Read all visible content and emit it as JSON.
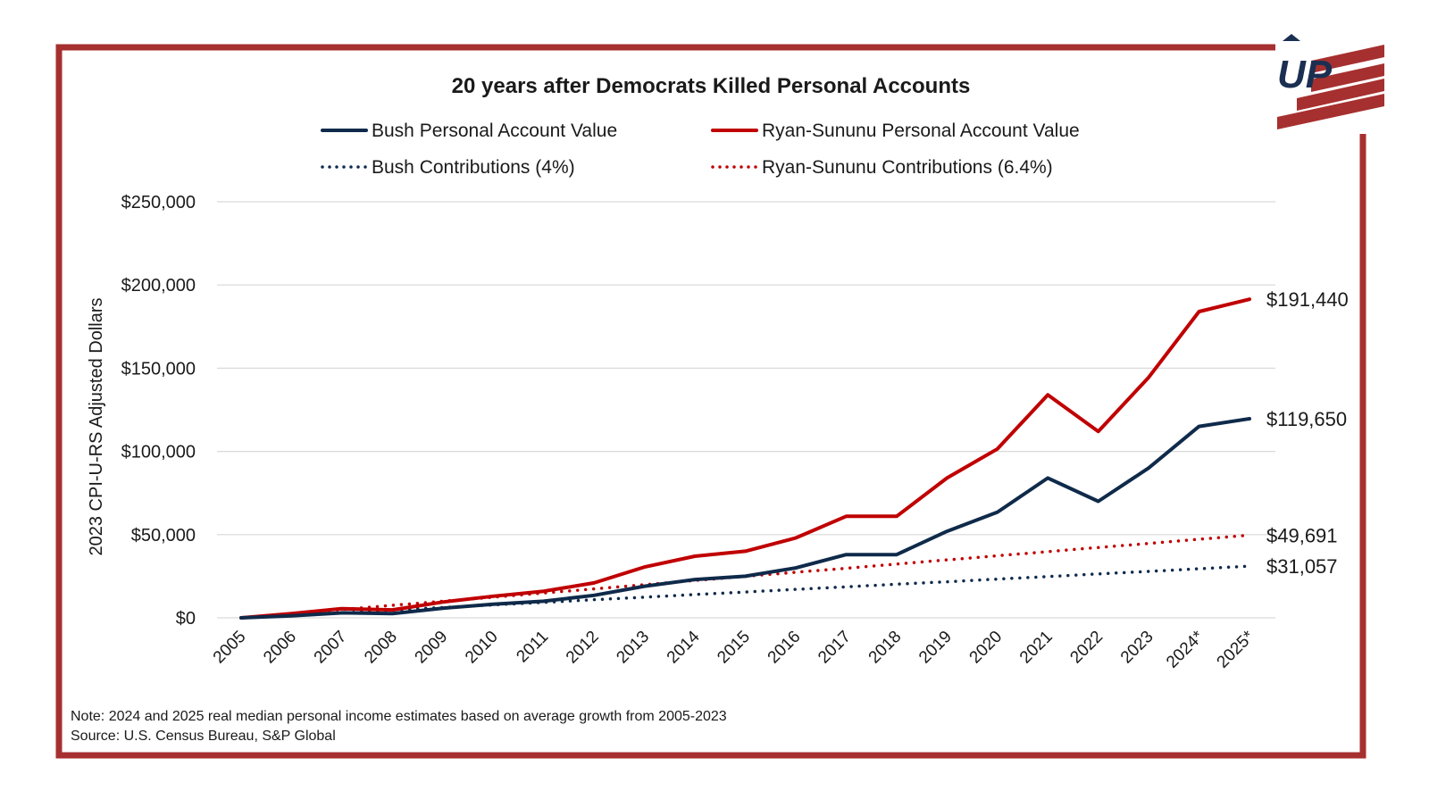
{
  "logo": {
    "text": "UP",
    "stripe_color": "#a6302f",
    "text_color": "#1b2f52"
  },
  "colors": {
    "frame": "#a6302f",
    "navy": "#0f2a4a",
    "red": "#c00000",
    "grid": "#d9d9d9",
    "text": "#1a1a1a"
  },
  "chart_data": {
    "type": "line",
    "title": "20 years after Democrats Killed Personal Accounts",
    "ylabel": "2023 CPI-U-RS Adjusted Dollars",
    "xlabel": "",
    "ylim": [
      0,
      250000
    ],
    "yticks": [
      {
        "value": 0,
        "label": "$0"
      },
      {
        "value": 50000,
        "label": "$50,000"
      },
      {
        "value": 100000,
        "label": "$100,000"
      },
      {
        "value": 150000,
        "label": "$150,000"
      },
      {
        "value": 200000,
        "label": "$200,000"
      },
      {
        "value": 250000,
        "label": "$250,000"
      }
    ],
    "grid": true,
    "legend_position": "top",
    "categories": [
      "2005",
      "2006",
      "2007",
      "2008",
      "2009",
      "2010",
      "2011",
      "2012",
      "2013",
      "2014",
      "2015",
      "2016",
      "2017",
      "2018",
      "2019",
      "2020",
      "2021",
      "2022",
      "2023",
      "2024*",
      "2025*"
    ],
    "series": [
      {
        "name": "Bush Personal Account Value",
        "color": "#0f2a4a",
        "style": "solid",
        "values": [
          0,
          1200,
          3000,
          2600,
          5800,
          8200,
          10000,
          13500,
          19000,
          23000,
          25000,
          30000,
          38000,
          38000,
          52000,
          63500,
          84000,
          70000,
          90000,
          115000,
          119650
        ],
        "end_label": "$119,650"
      },
      {
        "name": "Ryan-Sununu Personal Account Value",
        "color": "#c00000",
        "style": "solid",
        "values": [
          0,
          2500,
          5500,
          4800,
          9500,
          13000,
          16000,
          21000,
          30500,
          37000,
          40000,
          48000,
          61000,
          61000,
          84000,
          101500,
          134000,
          112000,
          144500,
          184000,
          191440
        ],
        "end_label": "$191,440"
      },
      {
        "name": "Bush Contributions (4%)",
        "color": "#0f2a4a",
        "style": "dotted",
        "values": [
          0,
          1500,
          3000,
          4600,
          6200,
          7800,
          9300,
          10900,
          12400,
          14000,
          15500,
          17100,
          18600,
          20200,
          21700,
          23300,
          24800,
          26400,
          27900,
          29500,
          31057
        ],
        "end_label": "$31,057"
      },
      {
        "name": "Ryan-Sununu Contributions (6.4%)",
        "color": "#c00000",
        "style": "dotted",
        "values": [
          0,
          2500,
          5000,
          7500,
          10000,
          12400,
          14900,
          17400,
          19900,
          22400,
          24900,
          27400,
          29800,
          32300,
          34800,
          37300,
          39800,
          42300,
          44700,
          47200,
          49691
        ],
        "end_label": "$49,691"
      }
    ]
  },
  "note": "Note: 2024 and 2025 real median personal income estimates based on average growth from 2005-2023",
  "source": "Source: U.S. Census Bureau, S&P Global"
}
